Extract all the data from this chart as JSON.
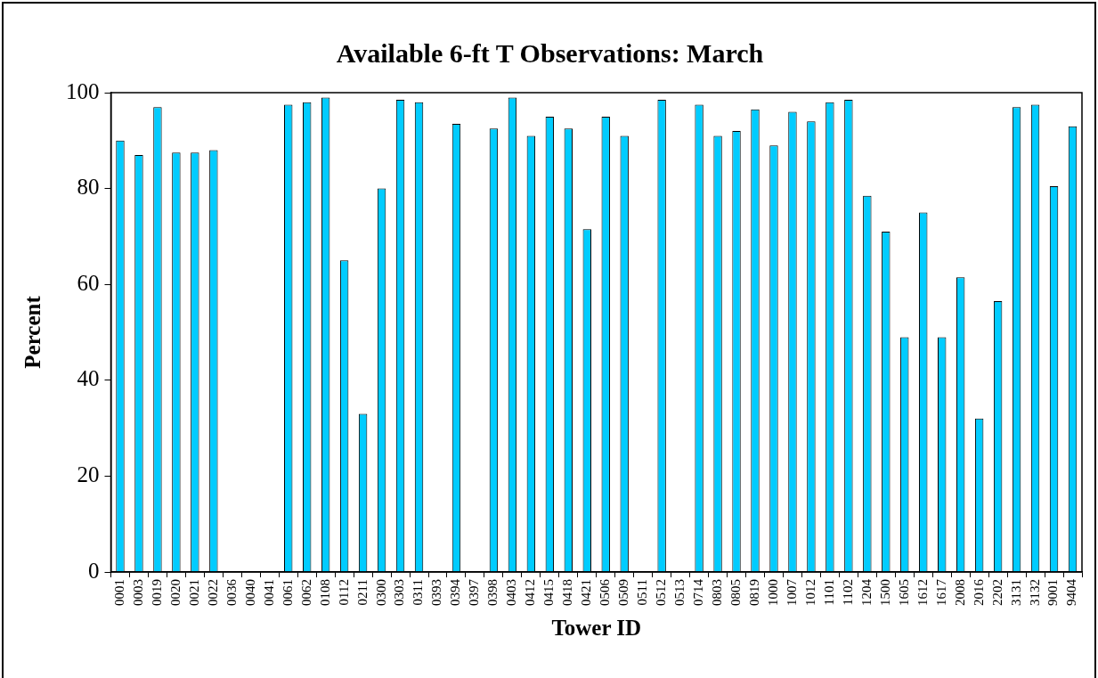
{
  "chart_data": {
    "type": "bar",
    "title": "Available 6-ft T Observations: March",
    "xlabel": "Tower ID",
    "ylabel": "Percent",
    "categories": [
      "0001",
      "0003",
      "0019",
      "0020",
      "0021",
      "0022",
      "0036",
      "0040",
      "0041",
      "0061",
      "0062",
      "0108",
      "0112",
      "0211",
      "0300",
      "0303",
      "0311",
      "0393",
      "0394",
      "0397",
      "0398",
      "0403",
      "0412",
      "0415",
      "0418",
      "0421",
      "0506",
      "0509",
      "0511",
      "0512",
      "0513",
      "0714",
      "0803",
      "0805",
      "0819",
      "1000",
      "1007",
      "1012",
      "1101",
      "1102",
      "1204",
      "1500",
      "1605",
      "1612",
      "1617",
      "2008",
      "2016",
      "2202",
      "3131",
      "3132",
      "9001",
      "9404"
    ],
    "values": [
      90,
      87,
      97,
      87.5,
      87.5,
      88,
      0,
      0,
      0,
      97.5,
      98,
      99,
      65,
      33,
      80,
      98.5,
      98,
      0,
      93.5,
      0,
      92.5,
      99,
      91,
      95,
      92.5,
      71.5,
      95,
      91,
      0,
      98.5,
      0,
      97.5,
      91,
      92,
      96.5,
      89,
      96,
      94,
      98,
      98.5,
      78.5,
      71,
      49,
      75,
      49,
      61.5,
      32,
      56.5,
      97,
      97.5,
      80.5,
      93
    ],
    "color": "#00ccff",
    "ylim": [
      0,
      100
    ],
    "yticks": [
      0,
      20,
      40,
      60,
      80,
      100
    ],
    "grid": false,
    "legend": false
  }
}
